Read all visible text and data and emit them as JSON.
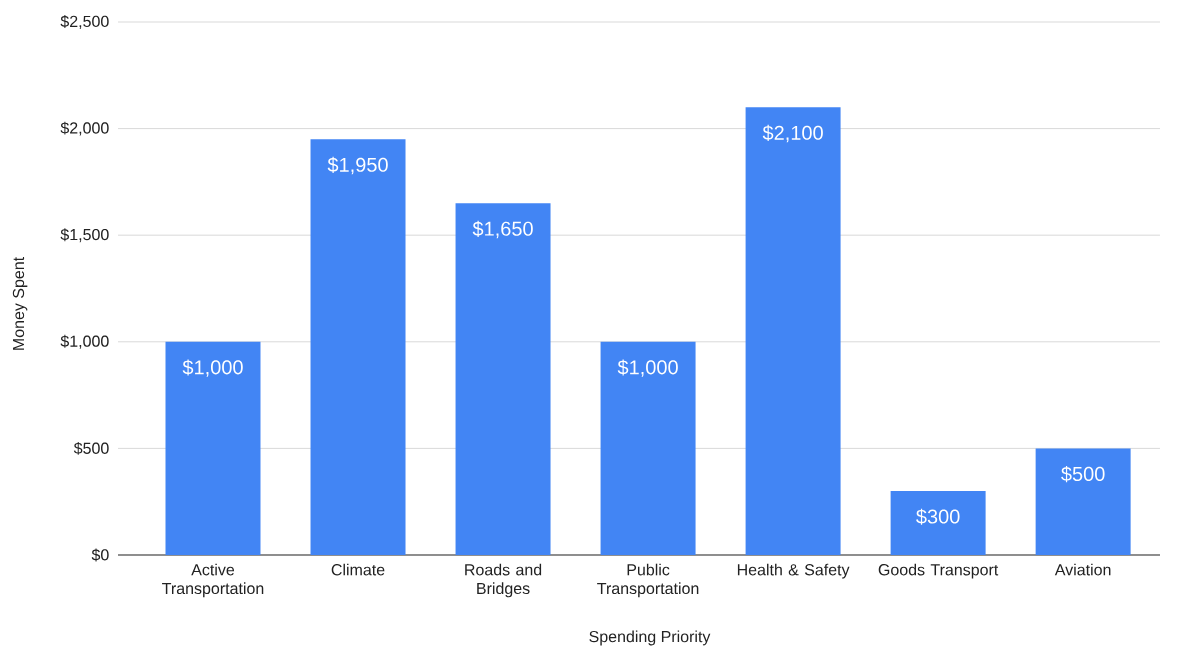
{
  "chart_data": {
    "type": "bar",
    "xlabel": "Spending Priority",
    "ylabel": "Money Spent",
    "categories": [
      "Active Transportation",
      "Climate",
      "Roads and Bridges",
      "Public Transportation",
      "Health & Safety",
      "Goods Transport",
      "Aviation"
    ],
    "values": [
      1000,
      1950,
      1650,
      1000,
      2100,
      300,
      500
    ],
    "value_labels": [
      "$1,000",
      "$1,950",
      "$1,650",
      "$1,000",
      "$2,100",
      "$300",
      "$500"
    ],
    "color": "#4285f4",
    "ylim": [
      0,
      2500
    ],
    "yticks": [
      {
        "value": 0,
        "label": "$0"
      },
      {
        "value": 500,
        "label": "$500"
      },
      {
        "value": 1000,
        "label": "$1,000"
      },
      {
        "value": 1500,
        "label": "$1,500"
      },
      {
        "value": 2000,
        "label": "$2,000"
      },
      {
        "value": 2500,
        "label": "$2,500"
      }
    ],
    "grid": "y"
  }
}
